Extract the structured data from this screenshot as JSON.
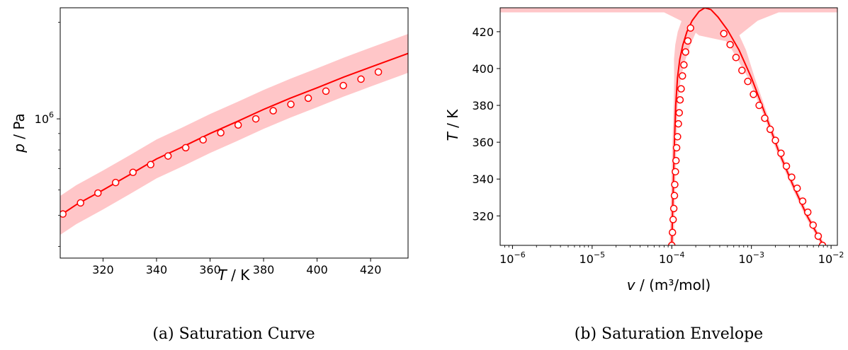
{
  "figure": {
    "colors": {
      "line": "#ff0000",
      "band": "#ffc6c8",
      "marker_edge": "#ff0000",
      "marker_face": "#ffffff",
      "axes": "#000000"
    }
  },
  "chart_data": [
    {
      "type": "line",
      "caption": "(a) Saturation Curve",
      "xlabel": {
        "var": "T",
        "unit": " / K"
      },
      "ylabel": {
        "var": "p",
        "unit": " / Pa"
      },
      "xlim": [
        304,
        434
      ],
      "ylim": [
        368000,
        2220000
      ],
      "yscale": "log",
      "grid": false,
      "legend": "none",
      "x_ticks": [
        "320",
        "340",
        "360",
        "380",
        "400",
        "420"
      ],
      "x_tick_values": [
        320,
        340,
        360,
        380,
        400,
        420
      ],
      "y_ticks": [
        {
          "base": "10",
          "exp": "6"
        }
      ],
      "y_tick_values": [
        1000000
      ],
      "series": [
        {
          "style": "line_with_band",
          "x": [
            304,
            310,
            320,
            330,
            340,
            350,
            360,
            370,
            380,
            390,
            400,
            410,
            420,
            434
          ],
          "values": [
            500000,
            540000,
            600000,
            670000,
            750000,
            820000,
            900000,
            980000,
            1070000,
            1160000,
            1250000,
            1350000,
            1450000,
            1600000
          ]
        },
        {
          "style": "markers",
          "x": [
            305,
            311.6,
            318.1,
            324.7,
            331.2,
            337.8,
            344.3,
            350.9,
            357.4,
            364.0,
            370.5,
            377.1,
            383.6,
            390.2,
            396.7,
            403.3,
            409.8,
            416.4,
            422.9
          ],
          "values": [
            505000,
            547000,
            587000,
            633000,
            681000,
            720000,
            766000,
            813000,
            860000,
            905000,
            957000,
            1000000,
            1060000,
            1110000,
            1160000,
            1220000,
            1270000,
            1330000,
            1400000
          ]
        }
      ]
    },
    {
      "type": "line",
      "caption": "(b) Saturation Envelope",
      "xlabel": {
        "var": "v",
        "unit": " / (m³/mol)"
      },
      "ylabel": {
        "var": "T",
        "unit": " / K"
      },
      "xscale": "log",
      "xlim": [
        7e-07,
        0.012
      ],
      "ylim": [
        304,
        433
      ],
      "grid": false,
      "legend": "none",
      "x_ticks": [
        {
          "base": "10",
          "exp": "−6"
        },
        {
          "base": "10",
          "exp": "−5"
        },
        {
          "base": "10",
          "exp": "−4"
        },
        {
          "base": "10",
          "exp": "−3"
        },
        {
          "base": "10",
          "exp": "−2"
        }
      ],
      "x_tick_values": [
        1e-06,
        1e-05,
        0.0001,
        0.001,
        0.01
      ],
      "y_ticks": [
        "320",
        "340",
        "360",
        "380",
        "400",
        "420"
      ],
      "y_tick_values": [
        320,
        340,
        360,
        380,
        400,
        420
      ],
      "series": [
        {
          "style": "line_with_band",
          "x": [
            0.0001,
            0.000102,
            0.000105,
            0.000108,
            0.000112,
            0.000118,
            0.000126,
            0.000138,
            0.000155,
            0.00018,
            0.00022,
            0.00026,
            0.00031,
            0.00038,
            0.0005,
            0.0007,
            0.001,
            0.0015,
            0.0022,
            0.0033,
            0.005,
            0.008
          ],
          "values": [
            304,
            320,
            340,
            360,
            380,
            395,
            405,
            413,
            420,
            426,
            431,
            433,
            432,
            428,
            421,
            410,
            395,
            375,
            355,
            337,
            320,
            304
          ]
        },
        {
          "style": "markers",
          "x": [
            0.0001,
            0.000102,
            0.000104,
            0.000106,
            0.000108,
            0.000109,
            0.000111,
            0.000113,
            0.000115,
            0.000118,
            0.000121,
            0.000124,
            0.000127,
            0.000131,
            0.000136,
            0.000142,
            0.000149,
            0.000159,
            0.000172,
            0.00045,
            0.00054,
            0.00064,
            0.00076,
            0.0009,
            0.00106,
            0.00125,
            0.00147,
            0.00172,
            0.002,
            0.00235,
            0.00275,
            0.0032,
            0.00375,
            0.0044,
            0.0051,
            0.00595,
            0.0069,
            0.0078
          ],
          "values": [
            304,
            311,
            318,
            324,
            331,
            337,
            344,
            350,
            357,
            363,
            370,
            376,
            383,
            389,
            396,
            402,
            409,
            415,
            422,
            419,
            413,
            406,
            399,
            393,
            386,
            380,
            373,
            367,
            361,
            354,
            347,
            341,
            335,
            328,
            322,
            315,
            309,
            304
          ]
        }
      ]
    }
  ]
}
